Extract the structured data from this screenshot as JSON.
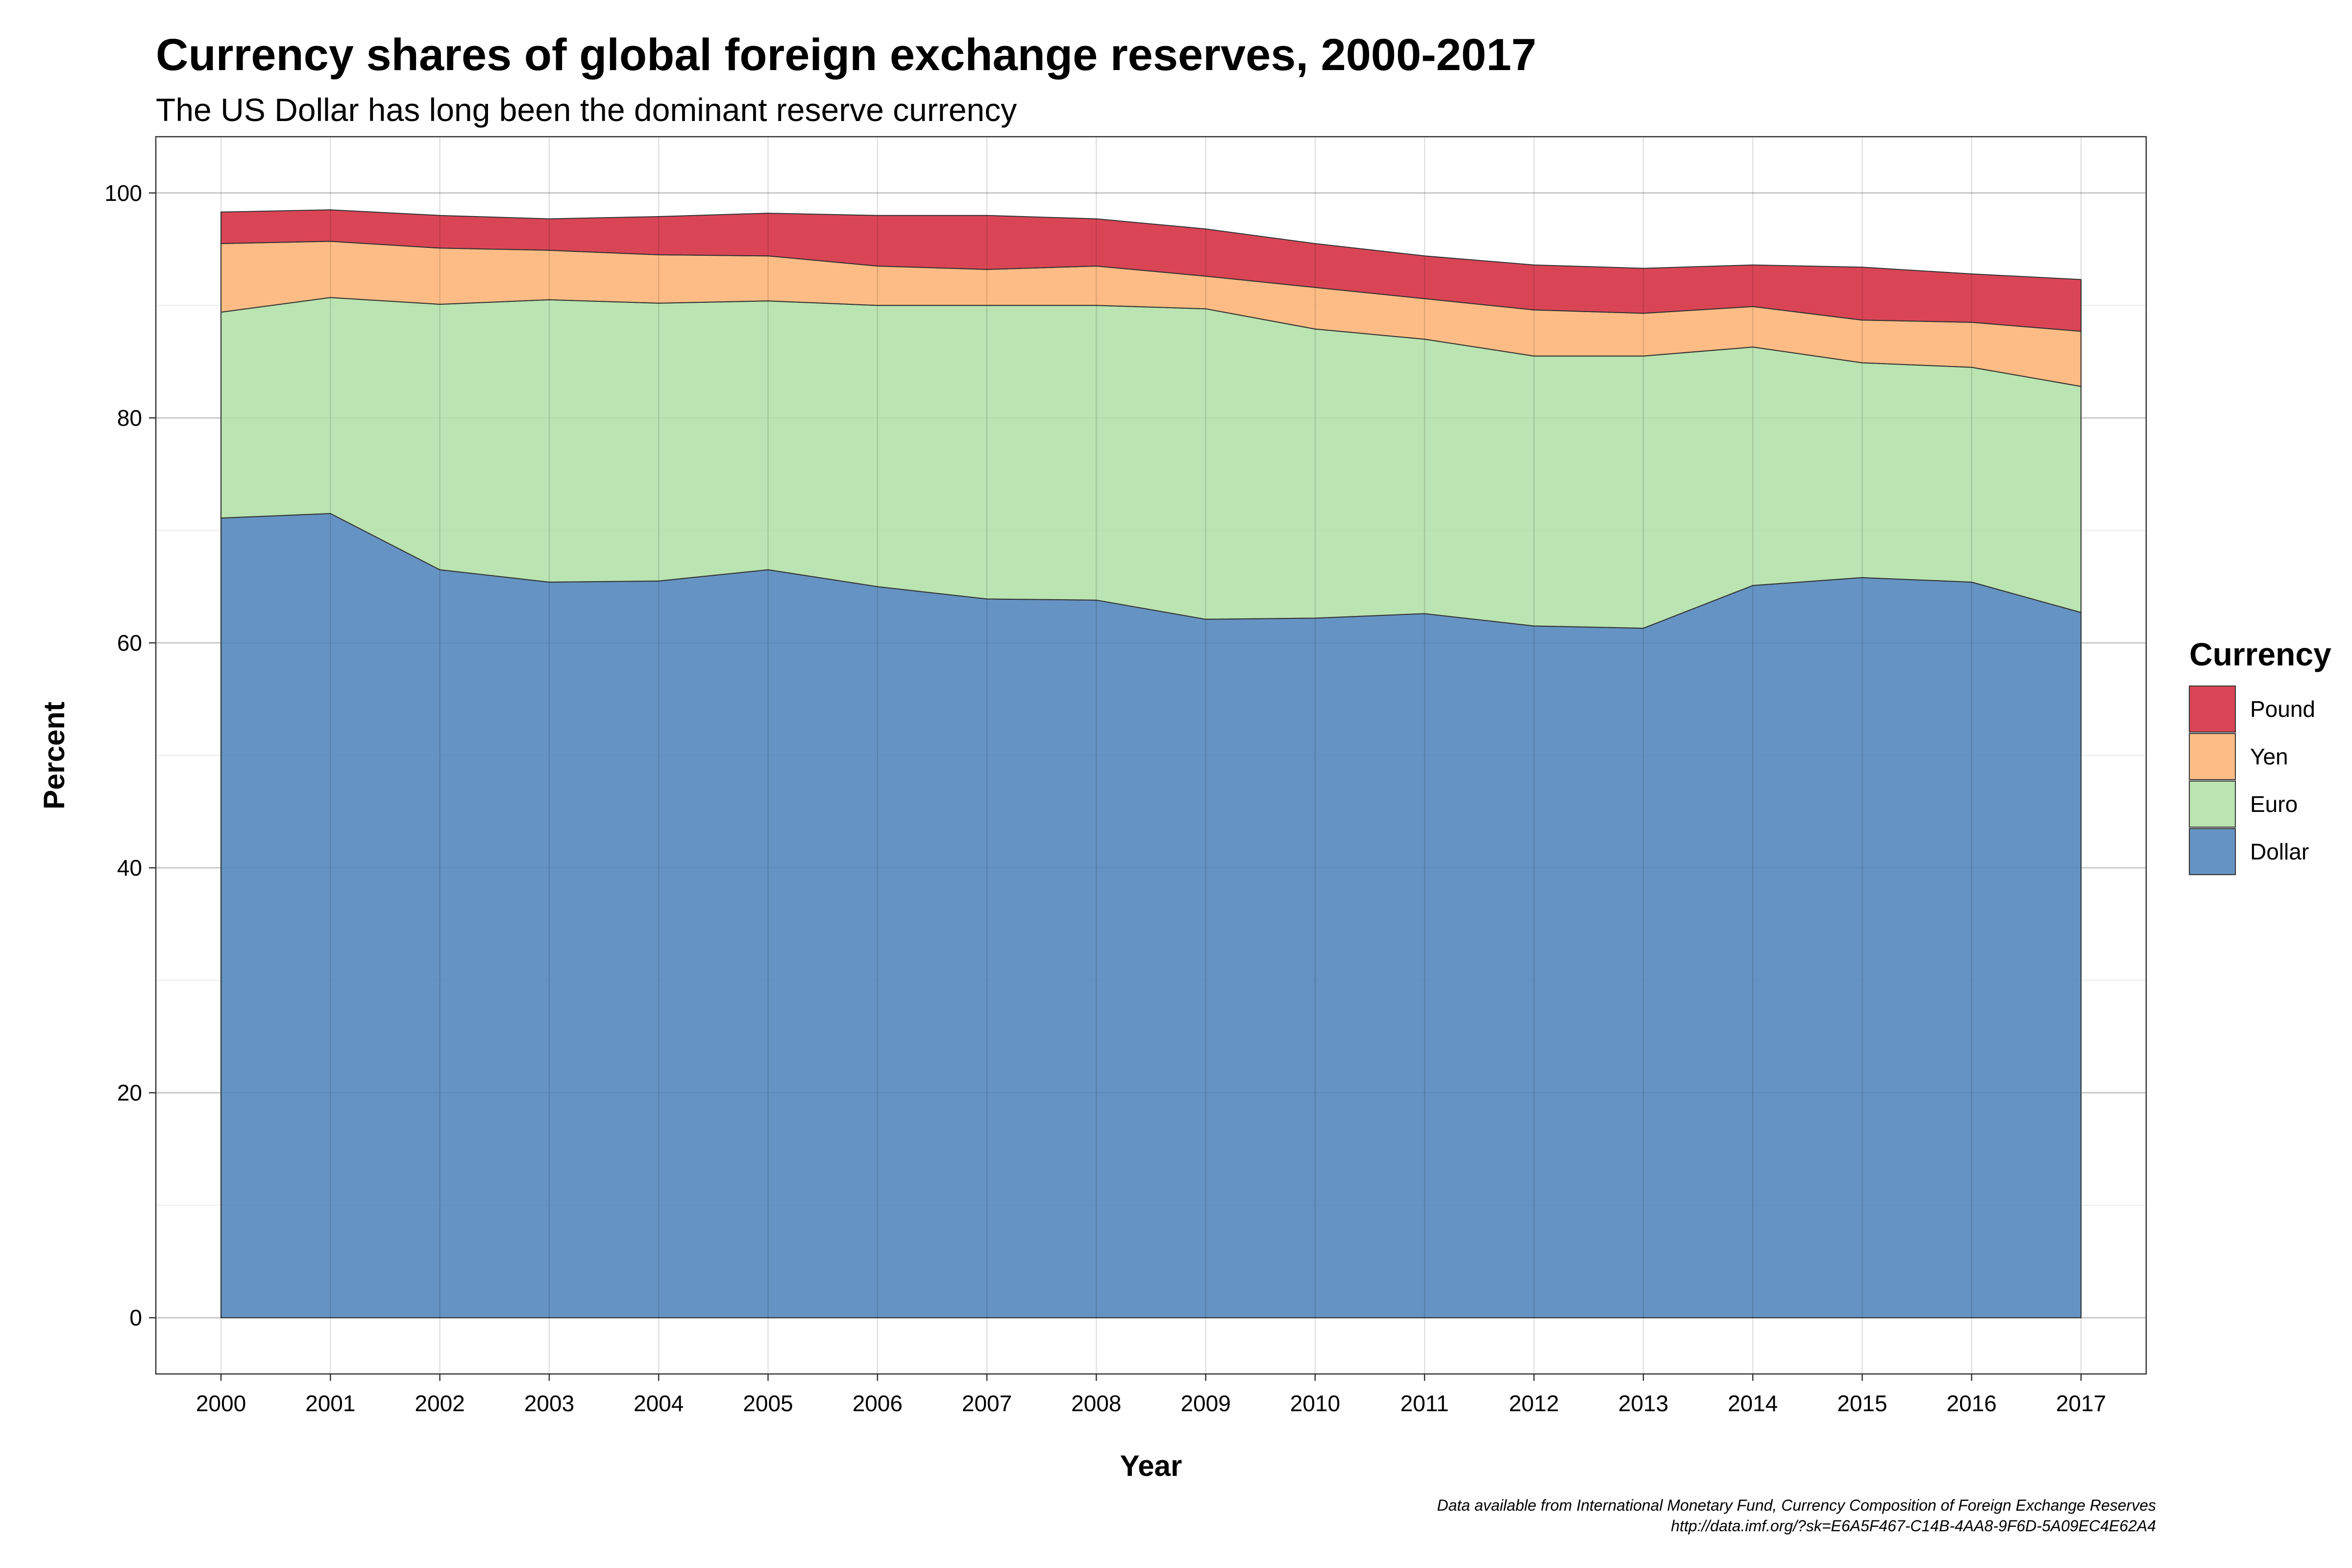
{
  "title": "Currency shares of global foreign exchange reserves, 2000-2017",
  "subtitle": "The US Dollar has long been the dominant reserve currency",
  "caption": {
    "line1": "Data available from International Monetary Fund, Currency Composition of Foreign Exchange Reserves",
    "line2": "http://data.imf.org/?sk=E6A5F467-C14B-4AA8-9F6D-5A09EC4E62A4"
  },
  "legend": {
    "title": "Currency",
    "placement": "right"
  },
  "chart_data": {
    "type": "area",
    "stacked": true,
    "x": [
      2000,
      2001,
      2002,
      2003,
      2004,
      2005,
      2006,
      2007,
      2008,
      2009,
      2010,
      2011,
      2012,
      2013,
      2014,
      2015,
      2016,
      2017
    ],
    "xlabel": "Year",
    "ylabel": "Percent",
    "ylim": [
      -5,
      105
    ],
    "yticks": [
      0,
      20,
      40,
      60,
      80,
      100
    ],
    "grid": true,
    "series": [
      {
        "name": "Dollar",
        "color": "#4a80b8",
        "values": [
          71.1,
          71.5,
          66.5,
          65.4,
          65.5,
          66.5,
          65.0,
          63.9,
          63.8,
          62.1,
          62.2,
          62.6,
          61.5,
          61.3,
          65.1,
          65.8,
          65.4,
          62.7
        ]
      },
      {
        "name": "Euro",
        "color": "#aedfa3",
        "values": [
          18.3,
          19.2,
          23.6,
          25.1,
          24.7,
          23.9,
          25.0,
          26.1,
          26.2,
          27.6,
          25.7,
          24.4,
          24.0,
          24.2,
          21.2,
          19.1,
          19.1,
          20.1
        ]
      },
      {
        "name": "Yen",
        "color": "#fdb070",
        "values": [
          6.1,
          5.0,
          5.0,
          4.4,
          4.3,
          4.0,
          3.5,
          3.2,
          3.5,
          2.9,
          3.7,
          3.6,
          4.1,
          3.8,
          3.6,
          3.8,
          4.0,
          4.9
        ]
      },
      {
        "name": "Pound",
        "color": "#d42538",
        "values": [
          2.8,
          2.8,
          2.9,
          2.8,
          3.4,
          3.8,
          4.5,
          4.8,
          4.2,
          4.2,
          3.9,
          3.8,
          4.0,
          4.0,
          3.7,
          4.7,
          4.3,
          4.6
        ]
      }
    ]
  }
}
